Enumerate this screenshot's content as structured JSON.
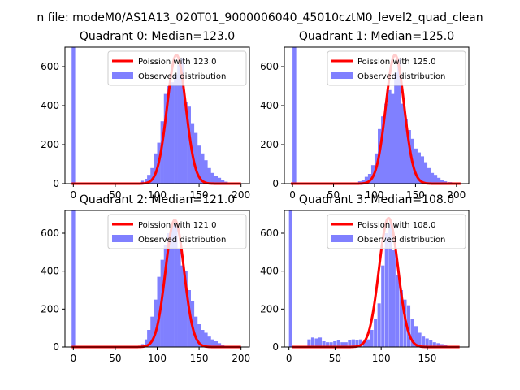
{
  "figure_title": "n file: modeM0/AS1A13_020T01_9000006040_45010cztM0_level2_quad_clean",
  "colors": {
    "hist": "#8080ff",
    "fit": "#ff0000",
    "frame": "#000000"
  },
  "chart_data": [
    {
      "type": "bar",
      "title": "Quadrant 0: Median=123.0",
      "xlim": [
        -10,
        210
      ],
      "ylim": [
        0,
        700
      ],
      "xticks": [
        0,
        50,
        100,
        150,
        200
      ],
      "yticks": [
        0,
        200,
        400,
        600
      ],
      "legend": {
        "placement": "top-right",
        "fit_label": "Poission with 123.0",
        "hist_label": "Observed distribution"
      },
      "fit": {
        "mean": 123,
        "peak": 660
      },
      "hist": {
        "bin_width": 4.2,
        "bins": [
          [
            -2,
            700
          ],
          [
            80,
            15
          ],
          [
            85,
            25
          ],
          [
            88,
            45
          ],
          [
            92,
            80
          ],
          [
            96,
            155
          ],
          [
            100,
            210
          ],
          [
            104,
            320
          ],
          [
            108,
            460
          ],
          [
            112,
            500
          ],
          [
            116,
            520
          ],
          [
            120,
            560
          ],
          [
            124,
            610
          ],
          [
            128,
            640
          ],
          [
            132,
            420
          ],
          [
            136,
            395
          ],
          [
            140,
            310
          ],
          [
            144,
            260
          ],
          [
            148,
            195
          ],
          [
            152,
            155
          ],
          [
            156,
            120
          ],
          [
            160,
            80
          ],
          [
            164,
            55
          ],
          [
            168,
            40
          ],
          [
            172,
            30
          ],
          [
            176,
            20
          ],
          [
            180,
            10
          ]
        ]
      }
    },
    {
      "type": "bar",
      "title": "Quadrant 1: Median=125.0",
      "xlim": [
        -10,
        215
      ],
      "ylim": [
        0,
        700
      ],
      "xticks": [
        0,
        50,
        100,
        150,
        200
      ],
      "yticks": [
        0,
        200,
        400,
        600
      ],
      "legend": {
        "placement": "top-right",
        "fit_label": "Poission with 125.0",
        "hist_label": "Observed distribution"
      },
      "fit": {
        "mean": 125,
        "peak": 660
      },
      "hist": {
        "bin_width": 4.5,
        "bins": [
          [
            0,
            700
          ],
          [
            80,
            12
          ],
          [
            84,
            18
          ],
          [
            88,
            35
          ],
          [
            92,
            50
          ],
          [
            96,
            95
          ],
          [
            100,
            155
          ],
          [
            104,
            280
          ],
          [
            108,
            345
          ],
          [
            112,
            410
          ],
          [
            116,
            480
          ],
          [
            120,
            460
          ],
          [
            124,
            570
          ],
          [
            128,
            640
          ],
          [
            132,
            410
          ],
          [
            136,
            330
          ],
          [
            140,
            275
          ],
          [
            144,
            230
          ],
          [
            148,
            180
          ],
          [
            152,
            160
          ],
          [
            156,
            140
          ],
          [
            160,
            110
          ],
          [
            164,
            80
          ],
          [
            168,
            55
          ],
          [
            172,
            45
          ],
          [
            176,
            30
          ],
          [
            180,
            20
          ],
          [
            184,
            12
          ],
          [
            190,
            8
          ],
          [
            195,
            5
          ]
        ]
      }
    },
    {
      "type": "bar",
      "title": "Quadrant 2: Median=121.0",
      "xlim": [
        -10,
        210
      ],
      "ylim": [
        0,
        720
      ],
      "xticks": [
        0,
        50,
        100,
        150,
        200
      ],
      "yticks": [
        0,
        200,
        400,
        600
      ],
      "legend": {
        "placement": "top-right",
        "fit_label": "Poission with 121.0",
        "hist_label": "Observed distribution"
      },
      "fit": {
        "mean": 121,
        "peak": 670
      },
      "hist": {
        "bin_width": 4.2,
        "bins": [
          [
            -2,
            720
          ],
          [
            80,
            15
          ],
          [
            85,
            40
          ],
          [
            88,
            90
          ],
          [
            92,
            160
          ],
          [
            96,
            250
          ],
          [
            100,
            370
          ],
          [
            104,
            460
          ],
          [
            108,
            540
          ],
          [
            112,
            600
          ],
          [
            116,
            640
          ],
          [
            120,
            650
          ],
          [
            124,
            520
          ],
          [
            128,
            430
          ],
          [
            132,
            400
          ],
          [
            136,
            300
          ],
          [
            140,
            240
          ],
          [
            144,
            160
          ],
          [
            148,
            120
          ],
          [
            152,
            90
          ],
          [
            156,
            75
          ],
          [
            160,
            55
          ],
          [
            164,
            40
          ],
          [
            168,
            30
          ],
          [
            172,
            20
          ],
          [
            176,
            12
          ],
          [
            180,
            6
          ]
        ]
      }
    },
    {
      "type": "bar",
      "title": "Quadrant 3: Median=108.0",
      "xlim": [
        -5,
        195
      ],
      "ylim": [
        0,
        720
      ],
      "xticks": [
        0,
        50,
        100,
        150
      ],
      "yticks": [
        0,
        200,
        400,
        600
      ],
      "legend": {
        "placement": "top-right",
        "fit_label": "Poission with 108.0",
        "hist_label": "Observed distribution"
      },
      "fit": {
        "mean": 108,
        "peak": 680
      },
      "hist": {
        "bin_width": 3.6,
        "bins": [
          [
            0,
            720
          ],
          [
            20,
            40
          ],
          [
            24,
            50
          ],
          [
            28,
            45
          ],
          [
            32,
            50
          ],
          [
            36,
            30
          ],
          [
            40,
            25
          ],
          [
            44,
            25
          ],
          [
            48,
            30
          ],
          [
            52,
            35
          ],
          [
            56,
            25
          ],
          [
            60,
            25
          ],
          [
            64,
            35
          ],
          [
            68,
            40
          ],
          [
            72,
            35
          ],
          [
            76,
            40
          ],
          [
            80,
            30
          ],
          [
            84,
            40
          ],
          [
            88,
            90
          ],
          [
            92,
            150
          ],
          [
            96,
            230
          ],
          [
            100,
            430
          ],
          [
            104,
            600
          ],
          [
            108,
            650
          ],
          [
            112,
            510
          ],
          [
            116,
            380
          ],
          [
            120,
            300
          ],
          [
            124,
            250
          ],
          [
            128,
            220
          ],
          [
            132,
            150
          ],
          [
            136,
            110
          ],
          [
            140,
            75
          ],
          [
            144,
            55
          ],
          [
            148,
            45
          ],
          [
            152,
            35
          ],
          [
            156,
            25
          ],
          [
            160,
            20
          ],
          [
            164,
            15
          ],
          [
            168,
            10
          ],
          [
            172,
            6
          ]
        ]
      }
    }
  ]
}
